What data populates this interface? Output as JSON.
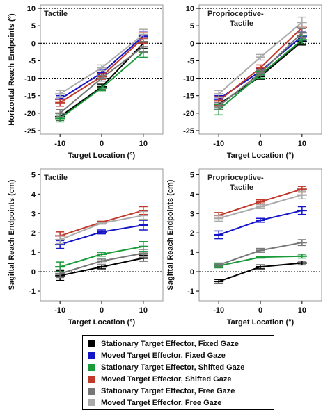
{
  "chart_data": [
    {
      "type": "line",
      "panel": "horizontal-tactile",
      "title": "Tactile",
      "ylabel": "Horizontal Reach Endpoints (°)",
      "xlabel": "Target Location (°)",
      "x": [
        -10,
        0,
        10
      ],
      "x_ticks": [
        "-10",
        "0",
        "10"
      ],
      "ylim": [
        -26,
        11
      ],
      "y_ticks": [
        10,
        5,
        0,
        -5,
        -10,
        -15,
        -20,
        -25
      ],
      "reference_lines": [
        10,
        0,
        -10
      ],
      "series": [
        {
          "name": "Stationary Target Effector, Fixed Gaze",
          "color": "#000000",
          "values": [
            -21.0,
            -12.5,
            0.0
          ],
          "errors": [
            1.0,
            0.8,
            1.5
          ]
        },
        {
          "name": "Moved Target Effector, Fixed Gaze",
          "color": "#1515c8",
          "values": [
            -16.0,
            -8.5,
            2.0
          ],
          "errors": [
            1.0,
            0.8,
            1.5
          ]
        },
        {
          "name": "Moved Target Effector, Shifted Gaze",
          "color": "#c0392b",
          "values": [
            -17.0,
            -9.5,
            1.5
          ],
          "errors": [
            1.0,
            0.8,
            1.5
          ]
        },
        {
          "name": "Stationary Target Effector, Shifted Gaze",
          "color": "#1a9a3a",
          "values": [
            -21.5,
            -12.8,
            -2.5
          ],
          "errors": [
            1.0,
            0.8,
            1.5
          ]
        },
        {
          "name": "Stationary Target Effector, Free Gaze",
          "color": "#777777",
          "values": [
            -20.0,
            -10.0,
            -1.0
          ],
          "errors": [
            1.0,
            0.8,
            1.5
          ]
        },
        {
          "name": "Moved Target Effector, Free Gaze",
          "color": "#aaaaaa",
          "values": [
            -14.5,
            -7.0,
            2.5
          ],
          "errors": [
            1.0,
            0.8,
            1.5
          ]
        }
      ]
    },
    {
      "type": "line",
      "panel": "horizontal-proprioceptive",
      "title": "Proprioceptive-\nTactile",
      "ylabel": "",
      "xlabel": "Target Location (°)",
      "x": [
        -10,
        0,
        10
      ],
      "x_ticks": [
        "-10",
        "0",
        "10"
      ],
      "ylim": [
        -26,
        11
      ],
      "y_ticks": [
        10,
        5,
        0,
        -5,
        -10,
        -15,
        -20,
        -25
      ],
      "reference_lines": [
        10,
        0,
        -10
      ],
      "series": [
        {
          "name": "Stationary Target Effector, Fixed Gaze",
          "color": "#000000",
          "values": [
            -17.5,
            -9.5,
            0.5
          ],
          "errors": [
            1.0,
            0.8,
            1.0
          ]
        },
        {
          "name": "Moved Target Effector, Fixed Gaze",
          "color": "#1515c8",
          "values": [
            -16.0,
            -8.0,
            2.0
          ],
          "errors": [
            1.0,
            0.8,
            1.2
          ]
        },
        {
          "name": "Moved Target Effector, Shifted Gaze",
          "color": "#c0392b",
          "values": [
            -16.5,
            -7.0,
            4.5
          ],
          "errors": [
            1.2,
            0.8,
            1.5
          ]
        },
        {
          "name": "Stationary Target Effector, Shifted Gaze",
          "color": "#1a9a3a",
          "values": [
            -19.0,
            -9.0,
            1.0
          ],
          "errors": [
            1.5,
            1.0,
            1.2
          ]
        },
        {
          "name": "Stationary Target Effector, Free Gaze",
          "color": "#777777",
          "values": [
            -18.0,
            -8.5,
            3.0
          ],
          "errors": [
            1.0,
            0.8,
            1.2
          ]
        },
        {
          "name": "Moved Target Effector, Free Gaze",
          "color": "#aaaaaa",
          "values": [
            -14.5,
            -4.0,
            6.0
          ],
          "errors": [
            1.0,
            0.8,
            1.5
          ]
        }
      ]
    },
    {
      "type": "line",
      "panel": "sagittal-tactile",
      "title": "Tactile",
      "ylabel": "Sagittal Reach Endpoints (cm)",
      "xlabel": "Target Location (°)",
      "x": [
        -10,
        0,
        10
      ],
      "x_ticks": [
        "-10",
        "0",
        "10"
      ],
      "ylim": [
        -1.5,
        5.3
      ],
      "y_ticks": [
        5,
        4,
        3,
        2,
        1,
        0,
        -1
      ],
      "reference_lines": [
        0
      ],
      "series": [
        {
          "name": "Stationary Target Effector, Fixed Gaze",
          "color": "#000000",
          "values": [
            -0.2,
            0.25,
            0.7
          ],
          "errors": [
            0.25,
            0.1,
            0.15
          ]
        },
        {
          "name": "Moved Target Effector, Fixed Gaze",
          "color": "#1515c8",
          "values": [
            1.4,
            2.05,
            2.4
          ],
          "errors": [
            0.2,
            0.1,
            0.25
          ]
        },
        {
          "name": "Moved Target Effector, Shifted Gaze",
          "color": "#c0392b",
          "values": [
            1.85,
            2.55,
            3.15
          ],
          "errors": [
            0.2,
            0.05,
            0.2
          ]
        },
        {
          "name": "Stationary Target Effector, Shifted Gaze",
          "color": "#1a9a3a",
          "values": [
            0.25,
            0.9,
            1.3
          ],
          "errors": [
            0.25,
            0.1,
            0.25
          ]
        },
        {
          "name": "Stationary Target Effector, Free Gaze",
          "color": "#777777",
          "values": [
            -0.1,
            0.55,
            0.95
          ],
          "errors": [
            0.2,
            0.1,
            0.2
          ]
        },
        {
          "name": "Moved Target Effector, Free Gaze",
          "color": "#aaaaaa",
          "values": [
            1.65,
            2.5,
            2.9
          ],
          "errors": [
            0.2,
            0.05,
            0.2
          ]
        }
      ]
    },
    {
      "type": "line",
      "panel": "sagittal-proprioceptive",
      "title": "Proprioceptive-\nTactile",
      "ylabel": "Sagittal Reach Endpoints (cm)",
      "xlabel": "Target Location (°)",
      "x": [
        -10,
        0,
        10
      ],
      "x_ticks": [
        "-10",
        "0",
        "10"
      ],
      "ylim": [
        -1.5,
        5.3
      ],
      "y_ticks": [
        5,
        4,
        3,
        2,
        1,
        0,
        -1
      ],
      "reference_lines": [
        0
      ],
      "series": [
        {
          "name": "Stationary Target Effector, Fixed Gaze",
          "color": "#000000",
          "values": [
            -0.5,
            0.25,
            0.45
          ],
          "errors": [
            0.1,
            0.1,
            0.1
          ]
        },
        {
          "name": "Moved Target Effector, Fixed Gaze",
          "color": "#1515c8",
          "values": [
            1.9,
            2.65,
            3.15
          ],
          "errors": [
            0.2,
            0.1,
            0.2
          ]
        },
        {
          "name": "Moved Target Effector, Shifted Gaze",
          "color": "#c0392b",
          "values": [
            2.9,
            3.6,
            4.25
          ],
          "errors": [
            0.15,
            0.1,
            0.15
          ]
        },
        {
          "name": "Stationary Target Effector, Shifted Gaze",
          "color": "#1a9a3a",
          "values": [
            0.3,
            0.75,
            0.8
          ],
          "errors": [
            0.1,
            0.05,
            0.1
          ]
        },
        {
          "name": "Stationary Target Effector, Free Gaze",
          "color": "#777777",
          "values": [
            0.35,
            1.1,
            1.5
          ],
          "errors": [
            0.1,
            0.1,
            0.15
          ]
        },
        {
          "name": "Moved Target Effector, Free Gaze",
          "color": "#aaaaaa",
          "values": [
            2.75,
            3.35,
            3.95
          ],
          "errors": [
            0.15,
            0.1,
            0.2
          ]
        }
      ]
    }
  ],
  "legend": {
    "items": [
      {
        "label": "Stationary Target Effector, Fixed Gaze",
        "color": "#000000"
      },
      {
        "label": "Moved Target Effector, Fixed Gaze",
        "color": "#1515c8"
      },
      {
        "label": "Stationary Target Effector, Shifted Gaze",
        "color": "#1a9a3a"
      },
      {
        "label": "Moved Target Effector, Shifted Gaze",
        "color": "#c0392b"
      },
      {
        "label": "Stationary Target Effector, Free Gaze",
        "color": "#777777"
      },
      {
        "label": "Moved Target Effector, Free Gaze",
        "color": "#aaaaaa"
      }
    ]
  }
}
